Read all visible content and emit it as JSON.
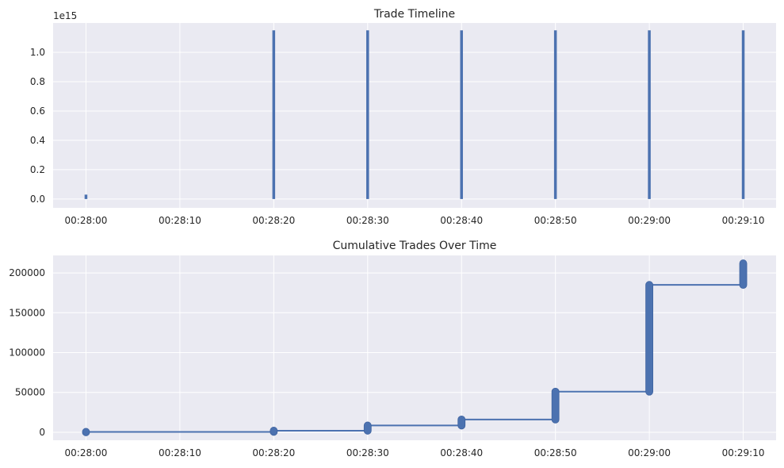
{
  "colors": {
    "plot_bg": "#EAEAF2",
    "grid": "#FFFFFF",
    "series": "#4C72B0",
    "text": "#262626"
  },
  "chart_data": [
    {
      "type": "bar",
      "title": "Trade Timeline",
      "xlabel": "",
      "ylabel": "",
      "x_ticks": [
        {
          "t": 0,
          "label": "00:28:00"
        },
        {
          "t": 10,
          "label": "00:28:10"
        },
        {
          "t": 20,
          "label": "00:28:20"
        },
        {
          "t": 30,
          "label": "00:28:30"
        },
        {
          "t": 40,
          "label": "00:28:40"
        },
        {
          "t": 50,
          "label": "00:28:50"
        },
        {
          "t": 60,
          "label": "00:29:00"
        },
        {
          "t": 70,
          "label": "00:29:10"
        }
      ],
      "y_ticks": [
        {
          "v": 0.0,
          "label": "0.0"
        },
        {
          "v": 0.2,
          "label": "0.2"
        },
        {
          "v": 0.4,
          "label": "0.4"
        },
        {
          "v": 0.6,
          "label": "0.6"
        },
        {
          "v": 0.8,
          "label": "0.8"
        },
        {
          "v": 1.0,
          "label": "1.0"
        }
      ],
      "y_offset_label": "1e15",
      "xlim": [
        -3.5,
        73.5
      ],
      "ylim": [
        -0.06,
        1.2
      ],
      "grid": true,
      "bars": [
        {
          "t": 0,
          "value": 0.03
        },
        {
          "t": 20,
          "value": 1.15
        },
        {
          "t": 30,
          "value": 1.15
        },
        {
          "t": 40,
          "value": 1.15
        },
        {
          "t": 50,
          "value": 1.15
        },
        {
          "t": 60,
          "value": 1.15
        },
        {
          "t": 70,
          "value": 1.15
        }
      ]
    },
    {
      "type": "line",
      "title": "Cumulative Trades Over Time",
      "xlabel": "",
      "ylabel": "",
      "x_ticks": [
        {
          "t": 0,
          "label": "00:28:00"
        },
        {
          "t": 10,
          "label": "00:28:10"
        },
        {
          "t": 20,
          "label": "00:28:20"
        },
        {
          "t": 30,
          "label": "00:28:30"
        },
        {
          "t": 40,
          "label": "00:28:40"
        },
        {
          "t": 50,
          "label": "00:28:50"
        },
        {
          "t": 60,
          "label": "00:29:00"
        },
        {
          "t": 70,
          "label": "00:29:10"
        }
      ],
      "y_ticks": [
        {
          "v": 0,
          "label": "0"
        },
        {
          "v": 50000,
          "label": "50000"
        },
        {
          "v": 100000,
          "label": "100000"
        },
        {
          "v": 150000,
          "label": "150000"
        },
        {
          "v": 200000,
          "label": "200000"
        }
      ],
      "xlim": [
        -3.5,
        73.5
      ],
      "ylim": [
        -10000,
        222000
      ],
      "grid": true,
      "markers": "circle",
      "steps": [
        {
          "t": 0,
          "y_start": 0,
          "y_end": 500
        },
        {
          "t": 20,
          "y_start": 500,
          "y_end": 2000
        },
        {
          "t": 30,
          "y_start": 2000,
          "y_end": 8500
        },
        {
          "t": 40,
          "y_start": 8500,
          "y_end": 16000
        },
        {
          "t": 50,
          "y_start": 16000,
          "y_end": 51000
        },
        {
          "t": 60,
          "y_start": 51000,
          "y_end": 185000
        },
        {
          "t": 70,
          "y_start": 185000,
          "y_end": 212000
        }
      ]
    }
  ]
}
